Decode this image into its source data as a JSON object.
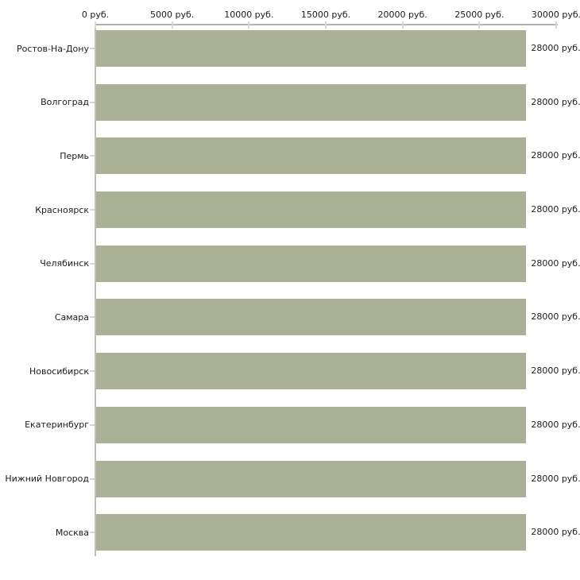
{
  "chart_data": {
    "type": "bar",
    "orientation": "horizontal",
    "title": "",
    "xlabel": "",
    "ylabel": "",
    "unit": "руб.",
    "categories": [
      "Ростов-На-Дону",
      "Волгоград",
      "Пермь",
      "Красноярск",
      "Челябинск",
      "Самара",
      "Новосибирск",
      "Екатеринбург",
      "Нижний Новгород",
      "Москва"
    ],
    "values": [
      28000,
      28000,
      28000,
      28000,
      28000,
      28000,
      28000,
      28000,
      28000,
      28000
    ],
    "value_labels": [
      "28000 руб.",
      "28000 руб.",
      "28000 руб.",
      "28000 руб.",
      "28000 руб.",
      "28000 руб.",
      "28000 руб.",
      "28000 руб.",
      "28000 руб.",
      "28000 руб."
    ],
    "x_ticks": [
      0,
      5000,
      10000,
      15000,
      20000,
      25000,
      30000
    ],
    "x_tick_labels": [
      "0 руб.",
      "5000 руб.",
      "10000 руб.",
      "15000 руб.",
      "20000 руб.",
      "25000 руб.",
      "30000 руб."
    ],
    "xlim": [
      0,
      30000
    ],
    "grid": false,
    "legend_position": "none",
    "colors": {
      "bar": "#abb197",
      "tick": "#d9d9c7",
      "h_axis_line": "#b3b3af",
      "v_axis_line": "#c0c0ba",
      "text": "#1c1c1c",
      "background": "#ffffff"
    }
  }
}
